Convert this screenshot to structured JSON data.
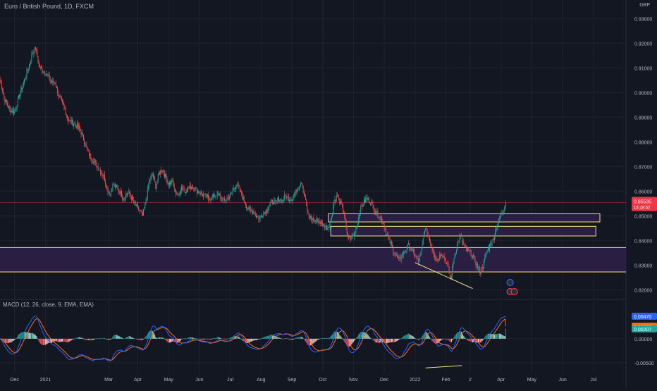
{
  "header": {
    "symbol_title": "Euro / British Pound, 1D, FXCM",
    "currency": "GBP",
    "macd_title": "MACD (12, 26, close, 9, EMA, EMA)"
  },
  "price_axis": {
    "ticks": [
      "0.93000",
      "0.92000",
      "0.91000",
      "0.90000",
      "0.89000",
      "0.88000",
      "0.87000",
      "0.86000",
      "0.85000",
      "0.84000",
      "0.83000",
      "0.82000"
    ],
    "tick_values": [
      0.93,
      0.92,
      0.91,
      0.9,
      0.89,
      0.88,
      0.87,
      0.86,
      0.85,
      0.84,
      0.83,
      0.82
    ],
    "ylim": [
      0.8175,
      0.9335
    ],
    "last_price_label": "0.85535",
    "last_price_value": 0.85535,
    "countdown_label": "15:18:52"
  },
  "macd_axis": {
    "ticks": [
      "0.00000",
      "-0.00500"
    ],
    "tick_values": [
      0.0,
      -0.005
    ],
    "ylim": [
      -0.0065,
      0.0063
    ],
    "macd_label": "0.00470",
    "macd_value": 0.0047,
    "signal_label": "0.00263",
    "signal_value": 0.00263,
    "histogram_label": "0.00207",
    "histogram_value": 0.00207
  },
  "time_axis": {
    "labels": [
      "Dec",
      "2021",
      "Mar",
      "Apr",
      "May",
      "Jun",
      "Jul",
      "Aug",
      "Sep",
      "Oct",
      "Nov",
      "Dec",
      "2022",
      "Feb",
      "2",
      "Apr",
      "May",
      "Jun",
      "Jul"
    ],
    "index": [
      18,
      56,
      134,
      170,
      208,
      246,
      284,
      322,
      360,
      398,
      436,
      474,
      512,
      550,
      580,
      618,
      656,
      694,
      732
    ]
  },
  "colors": {
    "background": "#131722",
    "up": "#26a69a",
    "down": "#ef5350",
    "zone_fill": "#2d1f47",
    "zone_border": "#f0e27a",
    "support_line": "#f0e27a",
    "macd_line": "#2962ff",
    "signal_line": "#ff6d00",
    "last_price": "#f23645",
    "grid": "#1e2230"
  },
  "drawings": {
    "zones": [
      {
        "x_start": 0,
        "x_end": 800,
        "top": 0.8371,
        "bottom": 0.8272,
        "outlined_box": false
      },
      {
        "x_start": 405,
        "x_end": 740,
        "top": 0.8508,
        "bottom": 0.8475,
        "outlined_box": true
      },
      {
        "x_start": 408,
        "x_end": 735,
        "top": 0.8457,
        "bottom": 0.8418,
        "outlined_box": true
      }
    ],
    "trendline_price": {
      "x1": 512,
      "y1": 0.831,
      "x2": 583,
      "y2": 0.8205
    },
    "trendline_macd": {
      "x1": 525,
      "y1": -0.0061,
      "x2": 570,
      "y2": -0.0056
    }
  },
  "chart_data": {
    "type": "candlestick",
    "title": "Euro / British Pound, 1D, FXCM",
    "x_unit": "trading day index (0 = start of visible range)",
    "y_unit": "GBP",
    "keypoints": [
      [
        0,
        0.905
      ],
      [
        6,
        0.897
      ],
      [
        12,
        0.893
      ],
      [
        18,
        0.892
      ],
      [
        24,
        0.899
      ],
      [
        30,
        0.905
      ],
      [
        36,
        0.911
      ],
      [
        40,
        0.916
      ],
      [
        44,
        0.918
      ],
      [
        48,
        0.911
      ],
      [
        52,
        0.909
      ],
      [
        56,
        0.908
      ],
      [
        60,
        0.906
      ],
      [
        64,
        0.904
      ],
      [
        68,
        0.904
      ],
      [
        72,
        0.899
      ],
      [
        76,
        0.896
      ],
      [
        80,
        0.893
      ],
      [
        84,
        0.889
      ],
      [
        88,
        0.888
      ],
      [
        92,
        0.887
      ],
      [
        96,
        0.886
      ],
      [
        100,
        0.884
      ],
      [
        104,
        0.88
      ],
      [
        108,
        0.876
      ],
      [
        112,
        0.874
      ],
      [
        116,
        0.872
      ],
      [
        120,
        0.87
      ],
      [
        124,
        0.868
      ],
      [
        128,
        0.866
      ],
      [
        132,
        0.861
      ],
      [
        136,
        0.859
      ],
      [
        140,
        0.863
      ],
      [
        144,
        0.861
      ],
      [
        148,
        0.86
      ],
      [
        152,
        0.857
      ],
      [
        156,
        0.859
      ],
      [
        160,
        0.859
      ],
      [
        164,
        0.856
      ],
      [
        168,
        0.854
      ],
      [
        172,
        0.852
      ],
      [
        176,
        0.85
      ],
      [
        180,
        0.856
      ],
      [
        184,
        0.864
      ],
      [
        188,
        0.867
      ],
      [
        192,
        0.862
      ],
      [
        196,
        0.867
      ],
      [
        200,
        0.869
      ],
      [
        204,
        0.866
      ],
      [
        208,
        0.863
      ],
      [
        212,
        0.864
      ],
      [
        216,
        0.86
      ],
      [
        220,
        0.858
      ],
      [
        224,
        0.862
      ],
      [
        228,
        0.86
      ],
      [
        236,
        0.862
      ],
      [
        244,
        0.86
      ],
      [
        252,
        0.858
      ],
      [
        260,
        0.857
      ],
      [
        268,
        0.859
      ],
      [
        276,
        0.856
      ],
      [
        284,
        0.858
      ],
      [
        288,
        0.861
      ],
      [
        292,
        0.863
      ],
      [
        296,
        0.86
      ],
      [
        300,
        0.857
      ],
      [
        304,
        0.854
      ],
      [
        308,
        0.852
      ],
      [
        312,
        0.852
      ],
      [
        316,
        0.85
      ],
      [
        320,
        0.849
      ],
      [
        324,
        0.851
      ],
      [
        328,
        0.852
      ],
      [
        332,
        0.854
      ],
      [
        336,
        0.856
      ],
      [
        340,
        0.855
      ],
      [
        344,
        0.857
      ],
      [
        348,
        0.856
      ],
      [
        352,
        0.858
      ],
      [
        356,
        0.857
      ],
      [
        360,
        0.857
      ],
      [
        364,
        0.859
      ],
      [
        368,
        0.862
      ],
      [
        372,
        0.864
      ],
      [
        376,
        0.858
      ],
      [
        380,
        0.85
      ],
      [
        384,
        0.849
      ],
      [
        388,
        0.848
      ],
      [
        392,
        0.848
      ],
      [
        396,
        0.847
      ],
      [
        400,
        0.846
      ],
      [
        404,
        0.845
      ],
      [
        408,
        0.848
      ],
      [
        412,
        0.856
      ],
      [
        416,
        0.858
      ],
      [
        420,
        0.855
      ],
      [
        424,
        0.852
      ],
      [
        428,
        0.842
      ],
      [
        432,
        0.841
      ],
      [
        436,
        0.842
      ],
      [
        440,
        0.846
      ],
      [
        444,
        0.852
      ],
      [
        448,
        0.855
      ],
      [
        452,
        0.857
      ],
      [
        456,
        0.856
      ],
      [
        460,
        0.854
      ],
      [
        464,
        0.851
      ],
      [
        468,
        0.85
      ],
      [
        472,
        0.848
      ],
      [
        476,
        0.843
      ],
      [
        480,
        0.84
      ],
      [
        484,
        0.837
      ],
      [
        488,
        0.834
      ],
      [
        492,
        0.832
      ],
      [
        496,
        0.834
      ],
      [
        500,
        0.836
      ],
      [
        504,
        0.838
      ],
      [
        508,
        0.836
      ],
      [
        512,
        0.834
      ],
      [
        516,
        0.831
      ],
      [
        520,
        0.836
      ],
      [
        524,
        0.845
      ],
      [
        528,
        0.842
      ],
      [
        532,
        0.838
      ],
      [
        536,
        0.834
      ],
      [
        540,
        0.832
      ],
      [
        544,
        0.835
      ],
      [
        548,
        0.833
      ],
      [
        552,
        0.83
      ],
      [
        556,
        0.824
      ],
      [
        560,
        0.833
      ],
      [
        564,
        0.838
      ],
      [
        568,
        0.842
      ],
      [
        572,
        0.838
      ],
      [
        576,
        0.836
      ],
      [
        580,
        0.835
      ],
      [
        584,
        0.833
      ],
      [
        588,
        0.83
      ],
      [
        592,
        0.827
      ],
      [
        596,
        0.83
      ],
      [
        600,
        0.835
      ],
      [
        604,
        0.838
      ],
      [
        608,
        0.84
      ],
      [
        612,
        0.845
      ],
      [
        616,
        0.849
      ],
      [
        620,
        0.852
      ],
      [
        624,
        0.8553
      ]
    ]
  }
}
